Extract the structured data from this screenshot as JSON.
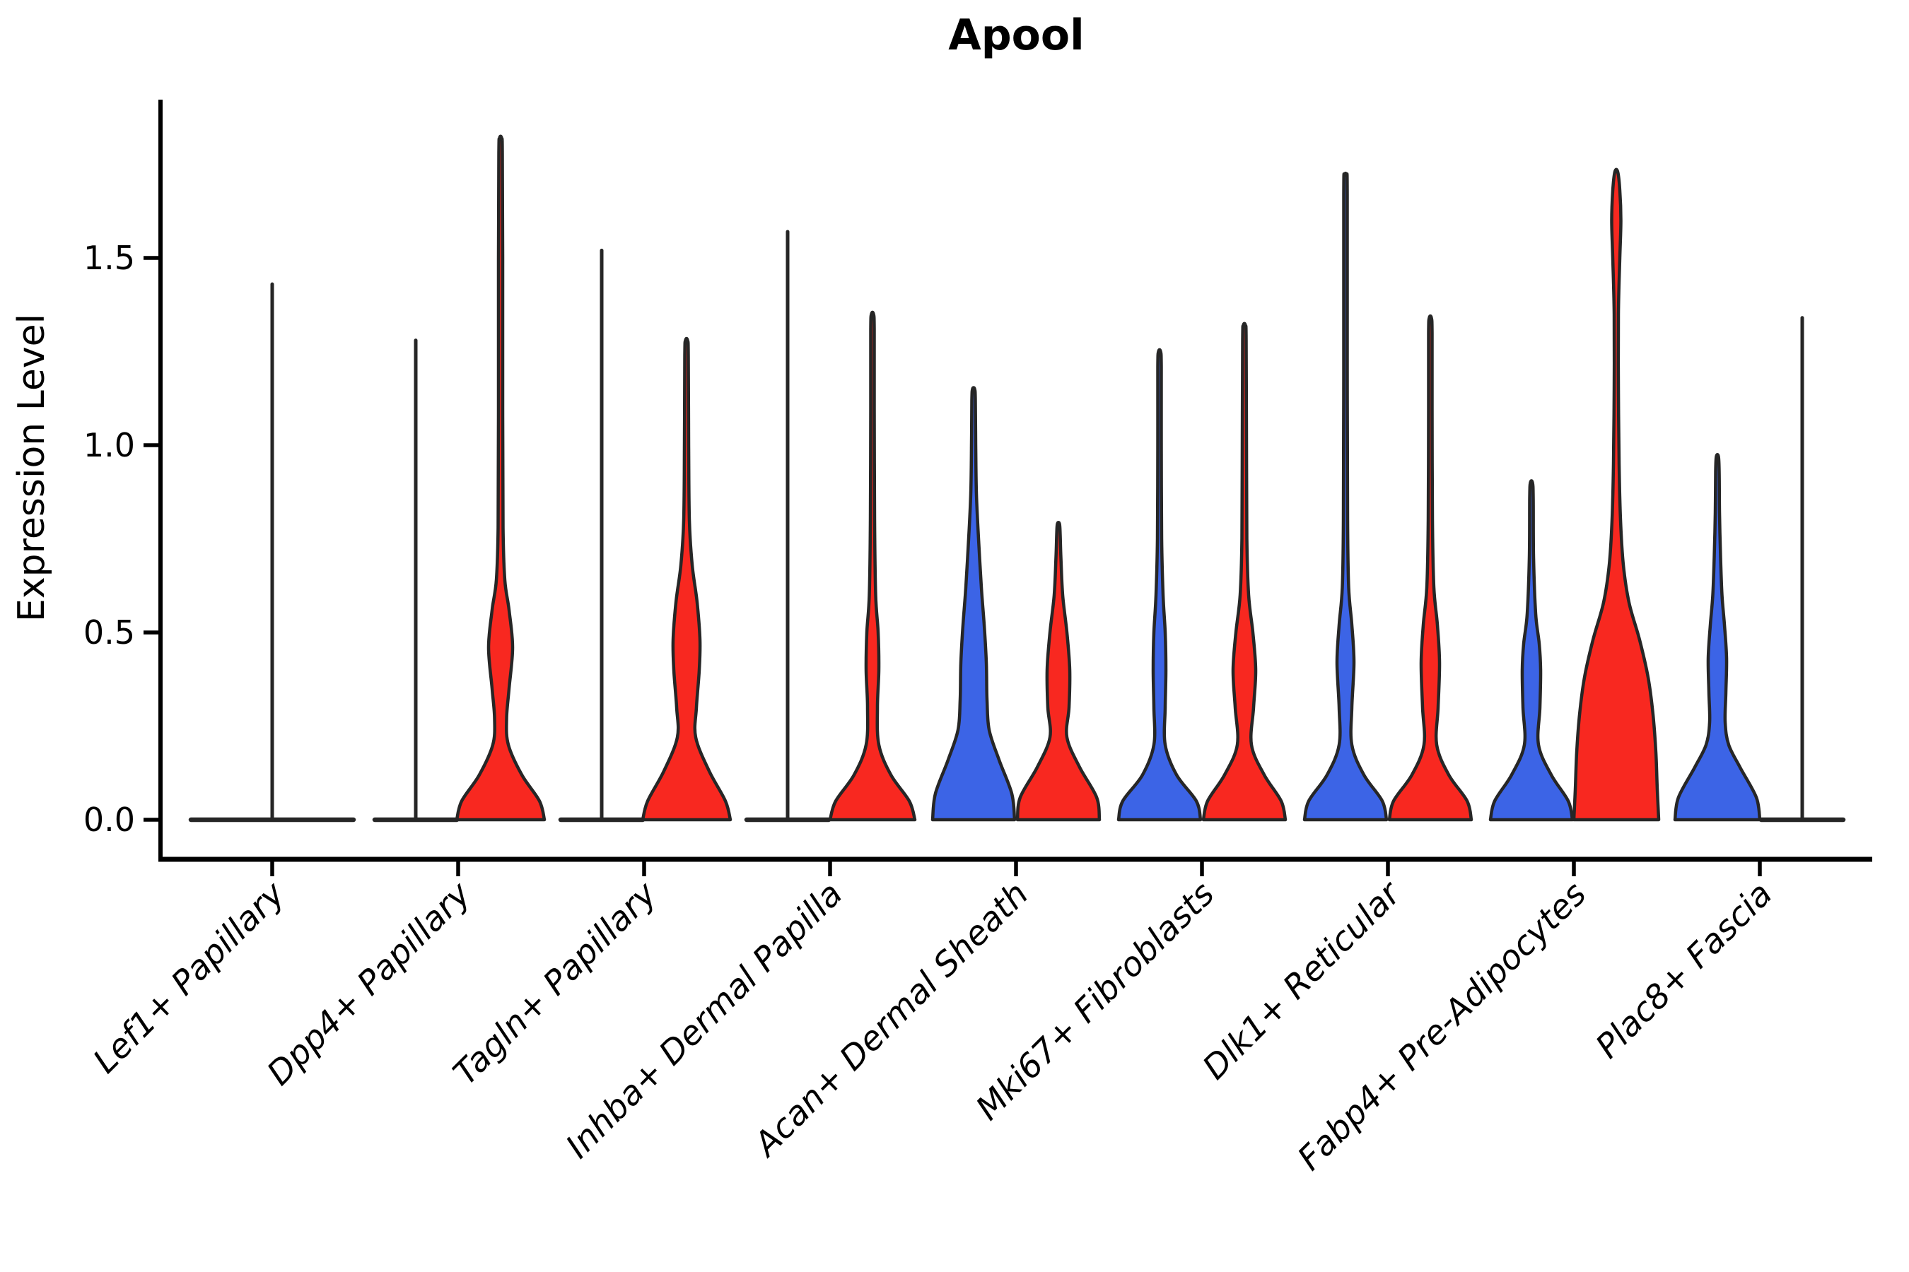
{
  "title": "Apool",
  "chart_data": {
    "type": "violin",
    "title": "Apool",
    "ylabel": "Expression Level",
    "xlabel": "",
    "yticks": [
      0.0,
      0.5,
      1.0,
      1.5
    ],
    "ytick_labels": [
      "0.0",
      "0.5",
      "1.0",
      "1.5"
    ],
    "ylim": [
      -0.08,
      1.92
    ],
    "grid": false,
    "legend": "none",
    "x_label_rotation_deg": 45,
    "x_label_style": "italic",
    "categories": [
      "Lef1+ Papillary",
      "Dpp4+ Papillary",
      "Tagln+ Papillary",
      "Inhba+ Dermal Papilla",
      "Acan+ Dermal Sheath",
      "Mki67+ Fibroblasts",
      "Dlk1+ Reticular",
      "Fabp4+ Pre-Adipocytes",
      "Plac8+ Fascia"
    ],
    "colors": {
      "left_group": "#3C64E6",
      "right_group": "#F82820",
      "outline": "#262626"
    },
    "violins": [
      {
        "category": "Lef1+ Papillary",
        "group": "single",
        "color": null,
        "collapsed": true,
        "max": 1.43,
        "base_halfwidth": 115
      },
      {
        "category": "Dpp4+ Papillary",
        "group": "left",
        "color": "#3C64E6",
        "collapsed": true,
        "max": 1.28,
        "base_halfwidth": 58
      },
      {
        "category": "Dpp4+ Papillary",
        "group": "right",
        "color": "#F82820",
        "collapsed": false,
        "max": 1.82,
        "profile": [
          [
            0,
            62
          ],
          [
            0.05,
            55
          ],
          [
            0.12,
            30
          ],
          [
            0.2,
            11
          ],
          [
            0.27,
            8.5
          ],
          [
            0.35,
            12
          ],
          [
            0.46,
            17
          ],
          [
            0.56,
            12
          ],
          [
            0.64,
            6
          ],
          [
            0.78,
            3.5
          ],
          [
            1.1,
            3
          ],
          [
            1.5,
            3
          ],
          [
            1.78,
            2.5
          ],
          [
            1.82,
            1.5
          ]
        ]
      },
      {
        "category": "Tagln+ Papillary",
        "group": "left",
        "color": "#3C64E6",
        "collapsed": true,
        "max": 1.52,
        "base_halfwidth": 58
      },
      {
        "category": "Tagln+ Papillary",
        "group": "right",
        "color": "#F82820",
        "collapsed": false,
        "max": 1.28,
        "profile": [
          [
            0,
            62
          ],
          [
            0.05,
            55
          ],
          [
            0.13,
            32
          ],
          [
            0.22,
            13
          ],
          [
            0.3,
            14
          ],
          [
            0.4,
            18
          ],
          [
            0.48,
            19
          ],
          [
            0.58,
            15
          ],
          [
            0.68,
            8
          ],
          [
            0.8,
            4
          ],
          [
            1.0,
            3
          ],
          [
            1.24,
            2.5
          ],
          [
            1.28,
            1.5
          ]
        ]
      },
      {
        "category": "Inhba+ Dermal Papilla",
        "group": "left",
        "color": "#3C64E6",
        "collapsed": true,
        "max": 1.57,
        "base_halfwidth": 58
      },
      {
        "category": "Inhba+ Dermal Papilla",
        "group": "right",
        "color": "#F82820",
        "collapsed": false,
        "max": 1.35,
        "profile": [
          [
            0,
            60
          ],
          [
            0.05,
            52
          ],
          [
            0.12,
            26
          ],
          [
            0.2,
            9
          ],
          [
            0.3,
            7
          ],
          [
            0.4,
            9
          ],
          [
            0.5,
            8
          ],
          [
            0.6,
            4.5
          ],
          [
            0.8,
            3
          ],
          [
            1.1,
            2.5
          ],
          [
            1.31,
            2.5
          ],
          [
            1.35,
            1.5
          ]
        ]
      },
      {
        "category": "Acan+ Dermal Sheath",
        "group": "left",
        "color": "#3C64E6",
        "collapsed": false,
        "max": 1.15,
        "profile": [
          [
            0,
            58
          ],
          [
            0.07,
            54
          ],
          [
            0.16,
            36
          ],
          [
            0.24,
            22
          ],
          [
            0.32,
            19
          ],
          [
            0.42,
            18
          ],
          [
            0.52,
            15
          ],
          [
            0.62,
            11
          ],
          [
            0.75,
            7
          ],
          [
            0.87,
            4
          ],
          [
            1.0,
            3
          ],
          [
            1.12,
            2.5
          ],
          [
            1.15,
            1.5
          ]
        ]
      },
      {
        "category": "Acan+ Dermal Sheath",
        "group": "right",
        "color": "#F82820",
        "collapsed": false,
        "max": 0.79,
        "profile": [
          [
            0,
            58
          ],
          [
            0.06,
            54
          ],
          [
            0.14,
            30
          ],
          [
            0.22,
            12
          ],
          [
            0.3,
            15
          ],
          [
            0.4,
            16
          ],
          [
            0.5,
            12
          ],
          [
            0.6,
            6
          ],
          [
            0.7,
            3.5
          ],
          [
            0.76,
            2.5
          ],
          [
            0.79,
            1.5
          ]
        ]
      },
      {
        "category": "Mki67+ Fibroblasts",
        "group": "left",
        "color": "#3C64E6",
        "collapsed": false,
        "max": 1.25,
        "profile": [
          [
            0,
            58
          ],
          [
            0.05,
            52
          ],
          [
            0.12,
            24
          ],
          [
            0.2,
            8
          ],
          [
            0.3,
            8
          ],
          [
            0.4,
            9
          ],
          [
            0.5,
            8
          ],
          [
            0.6,
            5
          ],
          [
            0.75,
            3
          ],
          [
            1.0,
            2.5
          ],
          [
            1.21,
            2.5
          ],
          [
            1.25,
            1.5
          ]
        ]
      },
      {
        "category": "Mki67+ Fibroblasts",
        "group": "right",
        "color": "#F82820",
        "collapsed": false,
        "max": 1.32,
        "profile": [
          [
            0,
            58
          ],
          [
            0.05,
            52
          ],
          [
            0.12,
            28
          ],
          [
            0.2,
            10
          ],
          [
            0.3,
            13
          ],
          [
            0.4,
            16
          ],
          [
            0.5,
            12
          ],
          [
            0.6,
            6
          ],
          [
            0.75,
            3.5
          ],
          [
            1.0,
            3
          ],
          [
            1.28,
            2.5
          ],
          [
            1.32,
            1.5
          ]
        ]
      },
      {
        "category": "Dlk1+ Reticular",
        "group": "left",
        "color": "#3C64E6",
        "collapsed": false,
        "max": 1.72,
        "profile": [
          [
            0,
            58
          ],
          [
            0.05,
            52
          ],
          [
            0.12,
            26
          ],
          [
            0.2,
            9
          ],
          [
            0.3,
            9
          ],
          [
            0.42,
            12
          ],
          [
            0.52,
            9
          ],
          [
            0.62,
            4.5
          ],
          [
            0.8,
            3
          ],
          [
            1.2,
            2.5
          ],
          [
            1.67,
            2.5
          ],
          [
            1.72,
            1.5
          ]
        ]
      },
      {
        "category": "Dlk1+ Reticular",
        "group": "right",
        "color": "#F82820",
        "collapsed": false,
        "max": 1.34,
        "profile": [
          [
            0,
            58
          ],
          [
            0.05,
            52
          ],
          [
            0.12,
            26
          ],
          [
            0.2,
            9
          ],
          [
            0.3,
            11
          ],
          [
            0.42,
            13
          ],
          [
            0.52,
            10
          ],
          [
            0.62,
            5
          ],
          [
            0.8,
            3
          ],
          [
            1.1,
            2.5
          ],
          [
            1.3,
            2.5
          ],
          [
            1.34,
            1.5
          ]
        ]
      },
      {
        "category": "Fabp4+ Pre-Adipocytes",
        "group": "left",
        "color": "#3C64E6",
        "collapsed": false,
        "max": 0.9,
        "profile": [
          [
            0,
            58
          ],
          [
            0.05,
            52
          ],
          [
            0.12,
            28
          ],
          [
            0.2,
            10
          ],
          [
            0.3,
            12
          ],
          [
            0.4,
            13
          ],
          [
            0.47,
            11
          ],
          [
            0.55,
            6
          ],
          [
            0.7,
            3
          ],
          [
            0.86,
            2.5
          ],
          [
            0.9,
            1.5
          ]
        ]
      },
      {
        "category": "Fabp4+ Pre-Adipocytes",
        "group": "right",
        "color": "#F82820",
        "collapsed": false,
        "max": 1.73,
        "profile": [
          [
            0,
            60
          ],
          [
            0.08,
            58
          ],
          [
            0.18,
            56
          ],
          [
            0.28,
            52
          ],
          [
            0.38,
            45
          ],
          [
            0.48,
            33
          ],
          [
            0.58,
            18
          ],
          [
            0.68,
            10
          ],
          [
            0.8,
            6
          ],
          [
            0.95,
            4
          ],
          [
            1.15,
            3
          ],
          [
            1.35,
            3
          ],
          [
            1.5,
            5
          ],
          [
            1.6,
            6.5
          ],
          [
            1.68,
            5
          ],
          [
            1.73,
            2
          ]
        ]
      },
      {
        "category": "Plac8+ Fascia",
        "group": "left",
        "color": "#3C64E6",
        "collapsed": false,
        "max": 0.97,
        "profile": [
          [
            0,
            60
          ],
          [
            0.06,
            55
          ],
          [
            0.14,
            32
          ],
          [
            0.2,
            16
          ],
          [
            0.26,
            11
          ],
          [
            0.34,
            12
          ],
          [
            0.43,
            13
          ],
          [
            0.52,
            10
          ],
          [
            0.6,
            6.5
          ],
          [
            0.7,
            4.5
          ],
          [
            0.82,
            3
          ],
          [
            0.93,
            2.5
          ],
          [
            0.97,
            1.5
          ]
        ]
      },
      {
        "category": "Plac8+ Fascia",
        "group": "right",
        "color": "#F82820",
        "collapsed": true,
        "max": 1.34,
        "base_halfwidth": 58
      }
    ]
  }
}
